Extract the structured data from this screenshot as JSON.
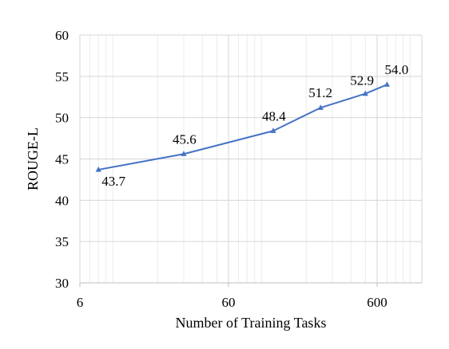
{
  "chart_data": {
    "type": "line",
    "title": "",
    "xlabel": "Number of Training Tasks",
    "ylabel": "ROUGE-L",
    "x_scale": "log",
    "xlim": [
      6,
      1200
    ],
    "ylim": [
      30,
      60
    ],
    "x_ticks": [
      6,
      60,
      600
    ],
    "x_tick_labels": [
      "6",
      "60",
      "600"
    ],
    "y_ticks": [
      30,
      35,
      40,
      45,
      50,
      55,
      60
    ],
    "y_tick_labels": [
      "30",
      "35",
      "40",
      "45",
      "50",
      "55",
      "60"
    ],
    "grid": true,
    "legend": "none",
    "series": [
      {
        "color": "#4472C4",
        "marker": "triangle",
        "x": [
          8,
          30,
          120,
          250,
          500,
          700
        ],
        "y": [
          43.7,
          45.6,
          48.4,
          51.2,
          52.9,
          54.0
        ],
        "labels": [
          "43.7",
          "45.6",
          "48.4",
          "51.2",
          "52.9",
          "54.0"
        ]
      }
    ]
  }
}
